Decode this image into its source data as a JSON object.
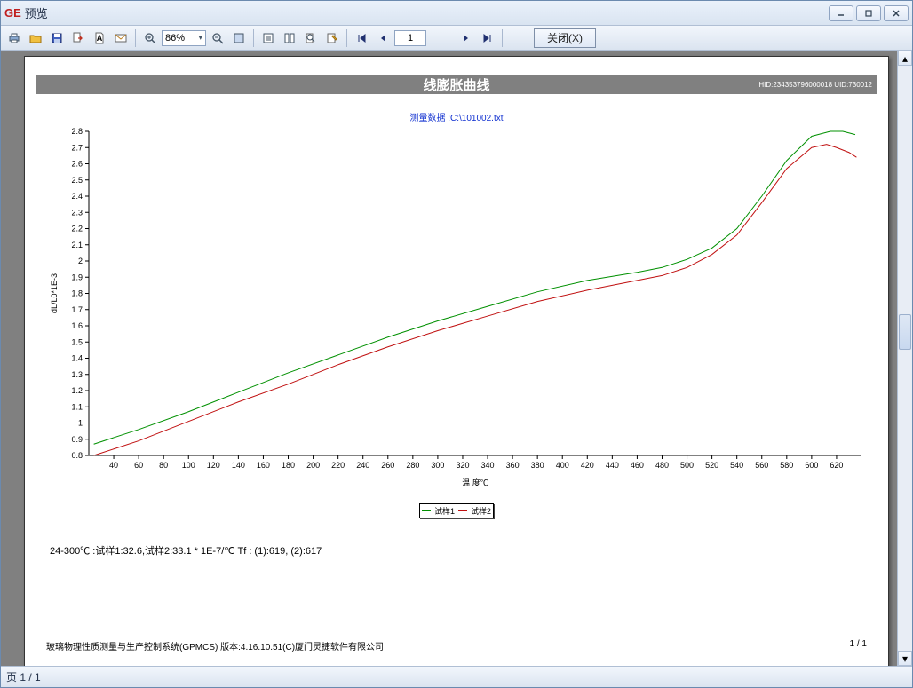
{
  "window": {
    "logo": "GE",
    "title": "预览"
  },
  "toolbar": {
    "zoom_value": "86%",
    "page_input": "1",
    "close_label": "关闭(X)"
  },
  "report": {
    "title_band": "线膨胀曲线",
    "meta_id": "HID:234353796000018  UID:730012",
    "caption": "测量数据 :C:\\101002.txt",
    "info_line": "24-300℃ :试样1:32.6,试样2:33.1  * 1E-7/℃   Tf : (1):619, (2):617",
    "footer_left": "玻璃物理性质测量与生产控制系统(GPMCS)  版本:4.16.10.51(C)厦门灵捷软件有限公司",
    "footer_right": "1 / 1",
    "legend": {
      "s1": "试样1",
      "s2": "试样2"
    }
  },
  "chart": {
    "type": "line",
    "background_color": "#ffffff",
    "axis_color": "#000000",
    "xlabel": "温 度℃",
    "ylabel": "dL/L0*1E-3",
    "xlim": [
      20,
      640
    ],
    "ylim": [
      0.8,
      2.8
    ],
    "xtick_step": 20,
    "ytick_step": 0.1,
    "xticks": [
      40,
      60,
      80,
      100,
      120,
      140,
      160,
      180,
      200,
      220,
      240,
      260,
      280,
      300,
      320,
      340,
      360,
      380,
      400,
      420,
      440,
      460,
      480,
      500,
      520,
      540,
      560,
      580,
      600,
      620
    ],
    "yticks": [
      0.8,
      0.9,
      1.0,
      1.1,
      1.2,
      1.3,
      1.4,
      1.5,
      1.6,
      1.7,
      1.8,
      1.9,
      2.0,
      2.1,
      2.2,
      2.3,
      2.4,
      2.5,
      2.6,
      2.7,
      2.8
    ],
    "label_fontsize": 9,
    "line_width": 1,
    "series": [
      {
        "name": "试样1",
        "color": "#009000",
        "points": [
          [
            24,
            0.87
          ],
          [
            60,
            0.96
          ],
          [
            100,
            1.07
          ],
          [
            140,
            1.19
          ],
          [
            180,
            1.31
          ],
          [
            220,
            1.42
          ],
          [
            260,
            1.53
          ],
          [
            300,
            1.63
          ],
          [
            340,
            1.72
          ],
          [
            380,
            1.81
          ],
          [
            420,
            1.88
          ],
          [
            460,
            1.93
          ],
          [
            480,
            1.96
          ],
          [
            500,
            2.01
          ],
          [
            520,
            2.08
          ],
          [
            540,
            2.2
          ],
          [
            560,
            2.4
          ],
          [
            580,
            2.62
          ],
          [
            600,
            2.77
          ],
          [
            615,
            2.8
          ],
          [
            625,
            2.8
          ],
          [
            635,
            2.78
          ]
        ]
      },
      {
        "name": "试样2",
        "color": "#c01010",
        "points": [
          [
            24,
            0.8
          ],
          [
            60,
            0.89
          ],
          [
            100,
            1.01
          ],
          [
            140,
            1.13
          ],
          [
            180,
            1.24
          ],
          [
            220,
            1.36
          ],
          [
            260,
            1.47
          ],
          [
            300,
            1.57
          ],
          [
            340,
            1.66
          ],
          [
            380,
            1.75
          ],
          [
            420,
            1.82
          ],
          [
            460,
            1.88
          ],
          [
            480,
            1.91
          ],
          [
            500,
            1.96
          ],
          [
            520,
            2.04
          ],
          [
            540,
            2.16
          ],
          [
            560,
            2.36
          ],
          [
            580,
            2.57
          ],
          [
            600,
            2.7
          ],
          [
            612,
            2.72
          ],
          [
            620,
            2.7
          ],
          [
            630,
            2.67
          ],
          [
            636,
            2.64
          ]
        ]
      }
    ]
  },
  "statusbar": {
    "page_text": "页 1 / 1"
  }
}
